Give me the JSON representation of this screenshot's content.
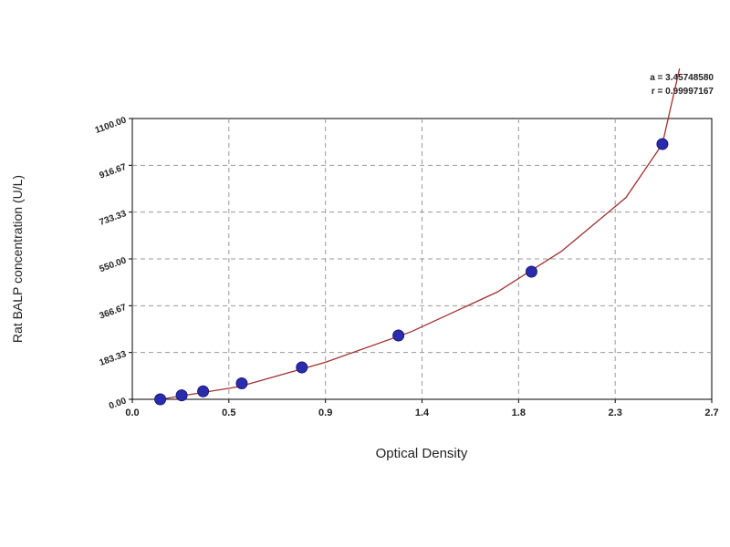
{
  "chart_data": {
    "type": "scatter",
    "annotations": [
      "a = 3.45748580",
      "r = 0.99997167"
    ],
    "x_label": "Optical Density",
    "y_label": "Rat BALP concentration (U/L)",
    "xlim": [
      0,
      2.7
    ],
    "xticks": [
      {
        "value": 0,
        "label": "0.0"
      },
      {
        "value": 0.45,
        "label": "0.5"
      },
      {
        "value": 0.9,
        "label": "0.9"
      },
      {
        "value": 1.35,
        "label": "1.4"
      },
      {
        "value": 1.8,
        "label": "1.8"
      },
      {
        "value": 2.25,
        "label": "2.3"
      },
      {
        "value": 2.7,
        "label": "2.7"
      }
    ],
    "ylim": [
      0,
      1100
    ],
    "yticks": [
      {
        "value": 0,
        "label": "0.00"
      },
      {
        "value": 183.33,
        "label": "183.33"
      },
      {
        "value": 366.67,
        "label": "366.67"
      },
      {
        "value": 550,
        "label": "550.00"
      },
      {
        "value": 733.33,
        "label": "733.33"
      },
      {
        "value": 916.67,
        "label": "916.67"
      },
      {
        "value": 1100,
        "label": "1100.00"
      }
    ],
    "grid": true,
    "series": [
      {
        "type": "scatter",
        "color": "#2b2bb0",
        "x": [
          0.13,
          0.23,
          0.33,
          0.51,
          0.79,
          1.24,
          1.86,
          2.47
        ],
        "values": [
          0,
          15.6,
          31.25,
          62.5,
          125,
          250,
          500,
          1000
        ]
      },
      {
        "type": "line",
        "color": "#a03030",
        "x": [
          0.13,
          0.5,
          0.9,
          1.3,
          1.7,
          2.0,
          2.3,
          2.47,
          2.55
        ],
        "values": [
          0,
          50,
          145,
          265,
          420,
          580,
          790,
          1000,
          1296
        ]
      }
    ]
  }
}
